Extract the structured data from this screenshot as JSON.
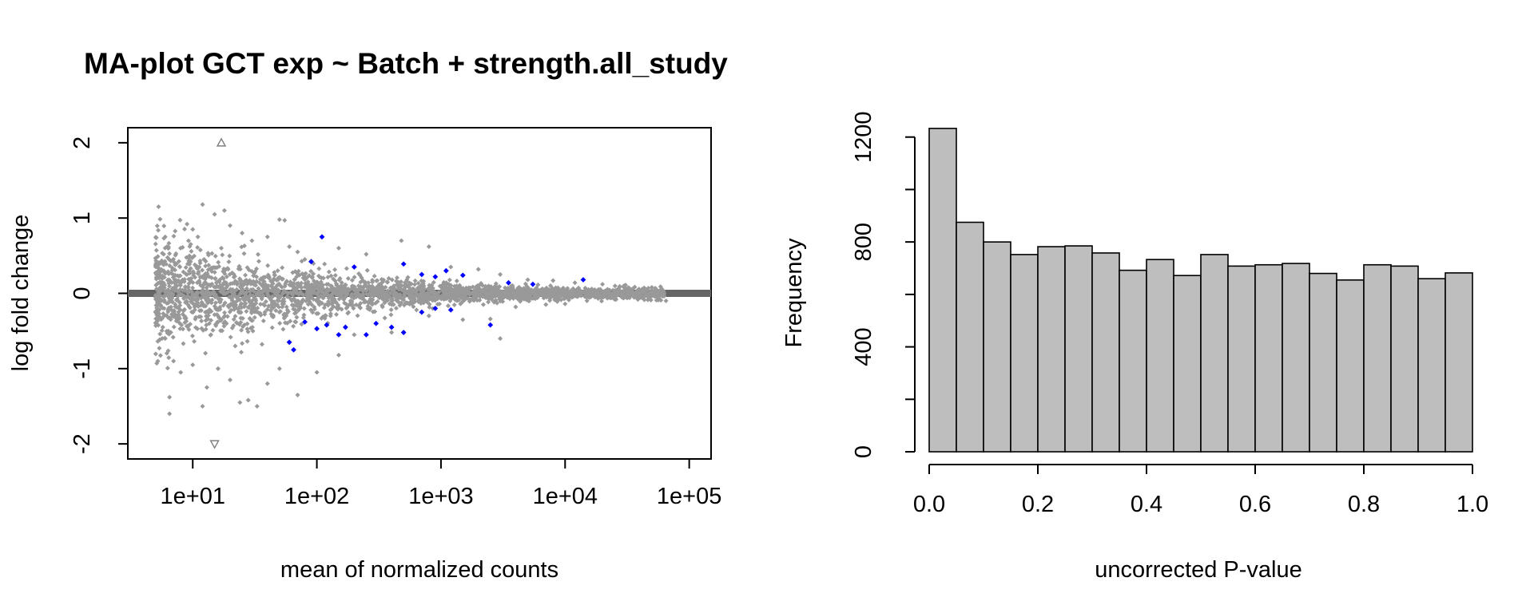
{
  "chart_data": [
    {
      "type": "scatter",
      "title": "MA-plot GCT exp ~ Batch + strength.all_study",
      "xlabel": "mean of normalized counts",
      "ylabel": "log fold change",
      "x_scale": "log10",
      "xlim": [
        3,
        150000
      ],
      "ylim": [
        -2.2,
        2.2
      ],
      "x_ticks": [
        10,
        100,
        1000,
        10000,
        100000
      ],
      "x_tick_labels": [
        "1e+01",
        "1e+02",
        "1e+03",
        "1e+04",
        "1e+05"
      ],
      "y_ticks": [
        -2,
        -1,
        0,
        1,
        2
      ],
      "y_tick_labels": [
        "-2",
        "-1",
        "0",
        "1",
        "2"
      ],
      "reference_line_y": 0,
      "colors": {
        "nonsignificant": "#999999",
        "significant": "#0000ff",
        "reference_line": "#666666",
        "outlier": "#7f7f7f"
      },
      "series": [
        {
          "points": [
            [
              10,
              0.85
            ],
            [
              12,
              1.18
            ],
            [
              15,
              1.05
            ],
            [
              18,
              1.1
            ],
            [
              9,
              0.92
            ],
            [
              11,
              0.75
            ],
            [
              20,
              0.9
            ],
            [
              25,
              0.8
            ],
            [
              30,
              0.7
            ],
            [
              40,
              0.75
            ],
            [
              50,
              0.98
            ],
            [
              55,
              0.97
            ],
            [
              60,
              0.62
            ],
            [
              70,
              0.55
            ],
            [
              80,
              0.45
            ],
            [
              90,
              0.43
            ],
            [
              150,
              0.6
            ],
            [
              250,
              0.52
            ],
            [
              480,
              0.7
            ],
            [
              800,
              0.62
            ],
            [
              1200,
              0.35
            ],
            [
              2000,
              0.32
            ],
            [
              3000,
              0.25
            ],
            [
              5000,
              0.18
            ],
            [
              8000,
              0.17
            ],
            [
              12000,
              0.14
            ],
            [
              20000,
              0.12
            ],
            [
              30000,
              0.1
            ],
            [
              50000,
              0.08
            ],
            [
              60000,
              0.06
            ],
            [
              65000,
              -0.1
            ],
            [
              40000,
              -0.06
            ],
            [
              25000,
              -0.08
            ],
            [
              15000,
              -0.1
            ],
            [
              10000,
              -0.14
            ],
            [
              7000,
              -0.15
            ],
            [
              4000,
              -0.18
            ],
            [
              2500,
              -0.34
            ],
            [
              3000,
              -0.6
            ],
            [
              1500,
              -0.35
            ],
            [
              800,
              -0.3
            ],
            [
              400,
              -0.52
            ],
            [
              200,
              -0.55
            ],
            [
              150,
              -0.82
            ],
            [
              100,
              -1.05
            ],
            [
              70,
              -1.35
            ],
            [
              50,
              -1.0
            ],
            [
              40,
              -1.2
            ],
            [
              33,
              -1.5
            ],
            [
              28,
              -1.42
            ],
            [
              24,
              -1.45
            ],
            [
              20,
              -1.15
            ],
            [
              16,
              -1.0
            ],
            [
              13,
              -1.25
            ],
            [
              10,
              -0.95
            ],
            [
              8,
              -1.05
            ],
            [
              6.5,
              -1.6
            ],
            [
              6.5,
              -1.38
            ],
            [
              7,
              -0.9
            ],
            [
              6,
              -0.6
            ],
            [
              5.5,
              0.4
            ],
            [
              6,
              0.75
            ],
            [
              12,
              -1.5
            ],
            [
              14,
              -0.55
            ],
            [
              17,
              0.6
            ],
            [
              22,
              -0.7
            ]
          ]
        },
        {
          "name": "",
          "significant": true,
          "points": [
            [
              90,
              0.42
            ],
            [
              110,
              0.75
            ],
            [
              200,
              0.35
            ],
            [
              500,
              0.39
            ],
            [
              700,
              0.25
            ],
            [
              900,
              0.22
            ],
            [
              1100,
              0.3
            ],
            [
              1500,
              0.24
            ],
            [
              3500,
              0.14
            ],
            [
              5500,
              0.12
            ],
            [
              14000,
              0.18
            ],
            [
              80,
              -0.38
            ],
            [
              100,
              -0.47
            ],
            [
              120,
              -0.42
            ],
            [
              150,
              -0.55
            ],
            [
              170,
              -0.45
            ],
            [
              250,
              -0.55
            ],
            [
              300,
              -0.4
            ],
            [
              400,
              -0.45
            ],
            [
              500,
              -0.52
            ],
            [
              700,
              -0.25
            ],
            [
              900,
              -0.2
            ],
            [
              1200,
              -0.22
            ],
            [
              2500,
              -0.42
            ],
            [
              65,
              -0.75
            ],
            [
              60,
              -0.65
            ]
          ]
        }
      ],
      "outliers": [
        {
          "x": 17,
          "y": 2.0,
          "direction": "up"
        },
        {
          "x": 15,
          "y": -2.0,
          "direction": "down"
        }
      ]
    },
    {
      "type": "bar",
      "subtype": "histogram",
      "xlabel": "uncorrected P-value",
      "ylabel": "Frequency",
      "xlim": [
        0,
        1
      ],
      "ylim": [
        0,
        1260
      ],
      "x_ticks": [
        0,
        0.2,
        0.4,
        0.6,
        0.8,
        1.0
      ],
      "x_tick_labels": [
        "0.0",
        "0.2",
        "0.4",
        "0.6",
        "0.8",
        "1.0"
      ],
      "y_ticks": [
        0,
        200,
        400,
        600,
        800,
        1000,
        1200
      ],
      "y_tick_labels": [
        "0",
        "",
        "400",
        "",
        "800",
        "",
        "1200"
      ],
      "bin_width": 0.05,
      "bins_start": [
        0,
        0.05,
        0.1,
        0.15,
        0.2,
        0.25,
        0.3,
        0.35,
        0.4,
        0.45,
        0.5,
        0.55,
        0.6,
        0.65,
        0.7,
        0.75,
        0.8,
        0.85,
        0.9,
        0.95
      ],
      "values": [
        1233,
        875,
        800,
        752,
        782,
        785,
        758,
        692,
        733,
        672,
        752,
        708,
        713,
        718,
        680,
        655,
        713,
        708,
        660,
        682
      ],
      "bar_color": "#bebebe"
    }
  ]
}
